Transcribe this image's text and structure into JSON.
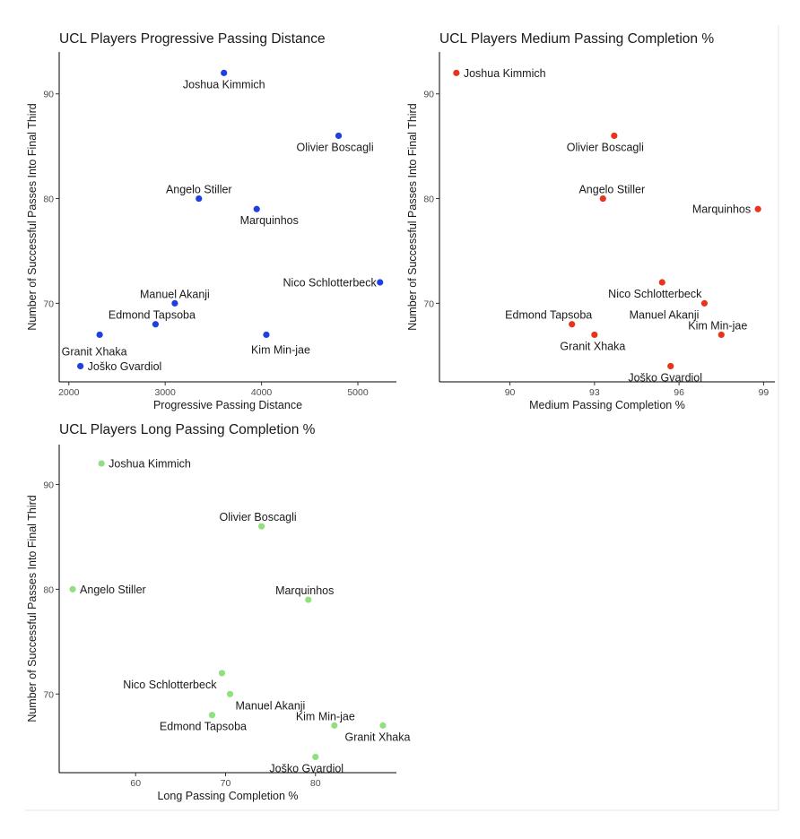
{
  "chart_data": [
    {
      "type": "scatter",
      "title": "UCL Players Progressive Passing Distance",
      "xlabel": "Progressive Passing Distance",
      "ylabel": "Number of Successful Passes Into Final Third",
      "color": "#1f3fe0",
      "xlim": [
        1900,
        5400
      ],
      "ylim": [
        62.5,
        94
      ],
      "xticks": [
        2000,
        3000,
        4000,
        5000
      ],
      "yticks": [
        70,
        80,
        90
      ],
      "points": [
        {
          "label": "Joshua Kimmich",
          "x": 3610,
          "y": 92
        },
        {
          "label": "Olivier Boscagli",
          "x": 4800,
          "y": 86
        },
        {
          "label": "Angelo Stiller",
          "x": 3350,
          "y": 80
        },
        {
          "label": "Marquinhos",
          "x": 3950,
          "y": 79
        },
        {
          "label": "Nico Schlotterbeck",
          "x": 5230,
          "y": 72
        },
        {
          "label": "Manuel Akanji",
          "x": 3100,
          "y": 70
        },
        {
          "label": "Edmond Tapsoba",
          "x": 2900,
          "y": 68
        },
        {
          "label": "Granit Xhaka",
          "x": 2320,
          "y": 67
        },
        {
          "label": "Kim Min-jae",
          "x": 4050,
          "y": 67
        },
        {
          "label": "Joško Gvardiol",
          "x": 2120,
          "y": 64
        }
      ]
    },
    {
      "type": "scatter",
      "title": "UCL Players Medium Passing Completion %",
      "xlabel": "Medium Passing Completion %",
      "ylabel": "Number of Successful Passes Into Final Third",
      "color": "#e8341c",
      "xlim": [
        87.5,
        99.4
      ],
      "ylim": [
        62.5,
        94
      ],
      "xticks": [
        90,
        93,
        96,
        99
      ],
      "yticks": [
        70,
        80,
        90
      ],
      "points": [
        {
          "label": "Joshua Kimmich",
          "x": 88.1,
          "y": 92
        },
        {
          "label": "Olivier Boscagli",
          "x": 93.7,
          "y": 86
        },
        {
          "label": "Angelo Stiller",
          "x": 93.3,
          "y": 80
        },
        {
          "label": "Marquinhos",
          "x": 98.8,
          "y": 79
        },
        {
          "label": "Nico Schlotterbeck",
          "x": 95.4,
          "y": 72
        },
        {
          "label": "Manuel Akanji",
          "x": 96.9,
          "y": 70
        },
        {
          "label": "Edmond Tapsoba",
          "x": 92.2,
          "y": 68
        },
        {
          "label": "Granit Xhaka",
          "x": 93.0,
          "y": 67
        },
        {
          "label": "Kim Min-jae",
          "x": 97.5,
          "y": 67
        },
        {
          "label": "Joško Gvardiol",
          "x": 95.7,
          "y": 64
        }
      ]
    },
    {
      "type": "scatter",
      "title": "UCL Players Long Passing Completion %",
      "xlabel": "Long Passing Completion %",
      "ylabel": "Number of Successful Passes Into Final Third",
      "color": "#90e080",
      "xlim": [
        51.5,
        89.0
      ],
      "ylim": [
        62.5,
        93.8
      ],
      "xticks": [
        60,
        70,
        80
      ],
      "yticks": [
        70,
        80,
        90
      ],
      "points": [
        {
          "label": "Joshua Kimmich",
          "x": 56.2,
          "y": 92
        },
        {
          "label": "Olivier Boscagli",
          "x": 74.0,
          "y": 86
        },
        {
          "label": "Angelo Stiller",
          "x": 53.0,
          "y": 80
        },
        {
          "label": "Marquinhos",
          "x": 79.2,
          "y": 79
        },
        {
          "label": "Nico Schlotterbeck",
          "x": 69.6,
          "y": 72
        },
        {
          "label": "Manuel Akanji",
          "x": 70.5,
          "y": 70
        },
        {
          "label": "Edmond Tapsoba",
          "x": 68.5,
          "y": 68
        },
        {
          "label": "Kim Min-jae",
          "x": 82.1,
          "y": 67
        },
        {
          "label": "Granit Xhaka",
          "x": 87.5,
          "y": 67
        },
        {
          "label": "Joško Gvardiol",
          "x": 80.0,
          "y": 64
        }
      ]
    }
  ]
}
